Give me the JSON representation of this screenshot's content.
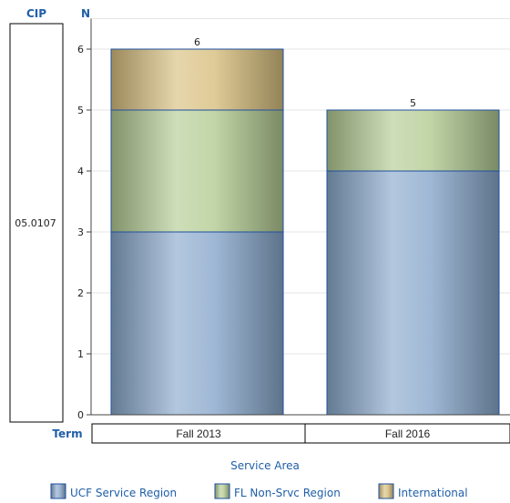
{
  "colors": {
    "UCF Service Region": "#8aa9cc",
    "FL Non-Srvc Region": "#b4cc94",
    "International": "#d8c080",
    "bar_outline": "#1f4fa0",
    "header_text": "#1f5fa8",
    "grid": "#e6e6e6"
  },
  "headers": {
    "cip": "CIP",
    "n": "N",
    "term": "Term",
    "cip_value": "05.0107"
  },
  "chart_data": {
    "type": "bar",
    "stacked": true,
    "categories": [
      "Fall 2013",
      "Fall 2016"
    ],
    "series": [
      {
        "name": "UCF Service Region",
        "values": [
          3,
          4
        ]
      },
      {
        "name": "FL Non-Srvc Region",
        "values": [
          2,
          1
        ]
      },
      {
        "name": "International",
        "values": [
          1,
          0
        ]
      }
    ],
    "totals": [
      6,
      5
    ],
    "ylim": [
      0,
      6.5
    ],
    "yticks": [
      0,
      1,
      2,
      3,
      4,
      5,
      6
    ],
    "grid": true,
    "legend_title": "Service Area",
    "legend_position": "bottom"
  }
}
